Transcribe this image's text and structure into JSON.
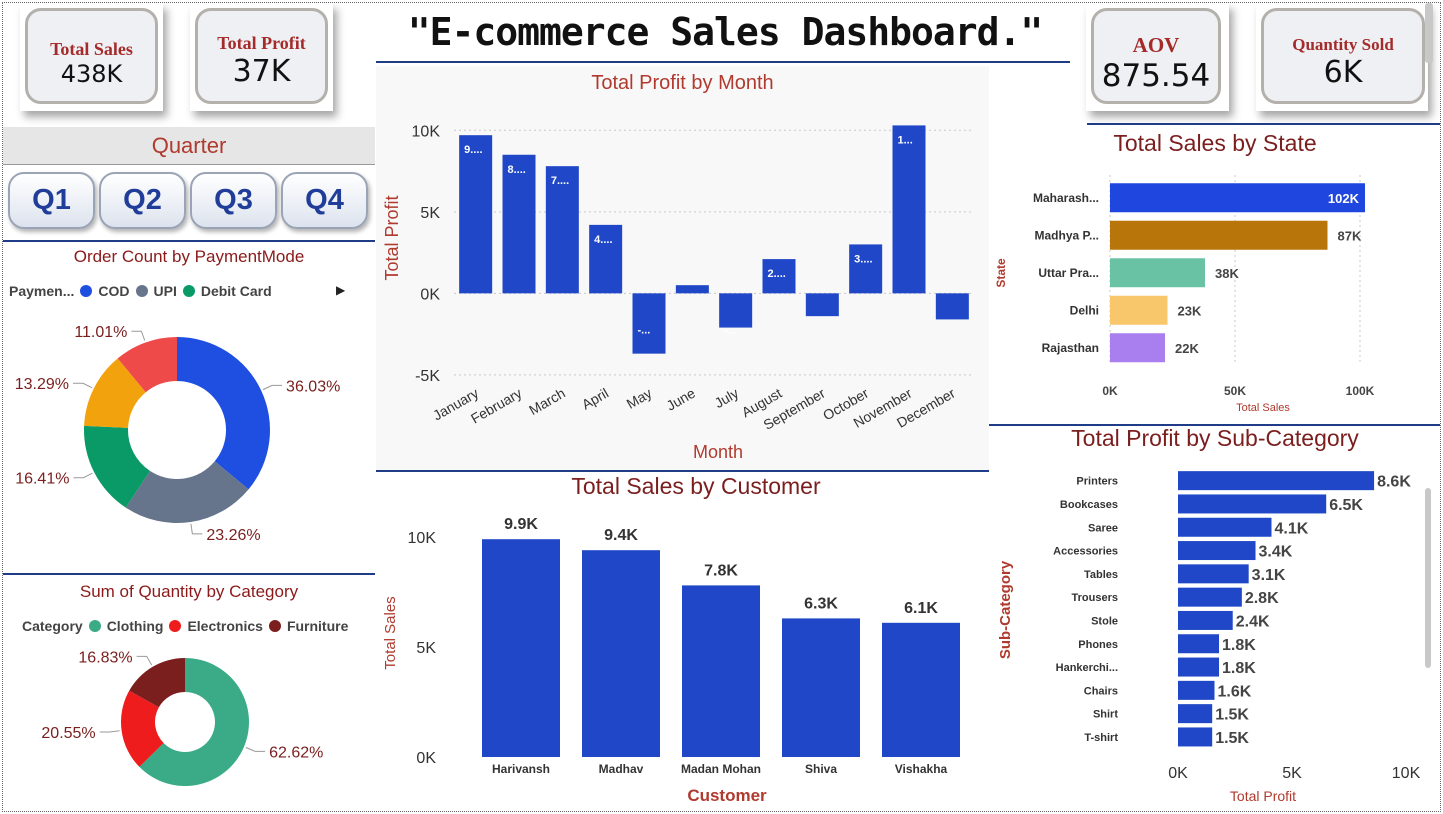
{
  "dashboard_title": "\"E-commerce Sales Dashboard.\"",
  "kpis": {
    "total_sales": {
      "label": "Total Sales",
      "value": "438K"
    },
    "total_profit": {
      "label": "Total Profit",
      "value": "37K"
    },
    "aov": {
      "label": "AOV",
      "value": "875.54"
    },
    "quantity_sold": {
      "label": "Quantity Sold",
      "value": "6K"
    }
  },
  "quarter_slicer": {
    "title": "Quarter",
    "buttons": [
      "Q1",
      "Q2",
      "Q3",
      "Q4"
    ]
  },
  "colors": {
    "bar_blue": "#1f47c7",
    "accent_red": "#8b1a1a",
    "divider": "#1f3c88"
  },
  "chart_data": [
    {
      "id": "profit_by_month",
      "type": "bar",
      "title": "Total Profit by Month",
      "xlabel": "Month",
      "ylabel": "Total Profit",
      "categories": [
        "January",
        "February",
        "March",
        "April",
        "May",
        "June",
        "July",
        "August",
        "September",
        "October",
        "November",
        "December"
      ],
      "values": [
        9700,
        8500,
        7800,
        4200,
        -3700,
        500,
        -2100,
        2100,
        -1400,
        3000,
        10300,
        -1600
      ],
      "data_labels": [
        "9....",
        "8....",
        "7....",
        "4....",
        "-...",
        "",
        "-...",
        "2....",
        "",
        "3....",
        "1...",
        ""
      ],
      "ylim": [
        -5500,
        11000
      ],
      "ticks": [
        {
          "v": 10000,
          "t": "10K"
        },
        {
          "v": 5000,
          "t": "5K"
        },
        {
          "v": 0,
          "t": "0K"
        },
        {
          "v": -5000,
          "t": "-5K"
        }
      ],
      "grid": true
    },
    {
      "id": "sales_by_customer",
      "type": "bar",
      "title": "Total Sales by Customer",
      "xlabel": "Customer",
      "ylabel": "Total Sales",
      "categories": [
        "Harivansh",
        "Madhav",
        "Madan Mohan",
        "Shiva",
        "Vishakha"
      ],
      "values": [
        9900,
        9400,
        7800,
        6300,
        6100
      ],
      "data_labels": [
        "9.9K",
        "9.4K",
        "7.8K",
        "6.3K",
        "6.1K"
      ],
      "ylim": [
        0,
        11000
      ],
      "ticks": [
        {
          "v": 10000,
          "t": "10K"
        },
        {
          "v": 5000,
          "t": "5K"
        },
        {
          "v": 0,
          "t": "0K"
        }
      ],
      "grid": false
    },
    {
      "id": "sales_by_state",
      "type": "bar",
      "orientation": "horizontal",
      "title": "Total Sales by State",
      "xlabel": "Total Sales",
      "ylabel": "State",
      "categories": [
        "Maharash...",
        "Madhya P...",
        "Uttar Pra...",
        "Delhi",
        "Rajasthan"
      ],
      "values": [
        102000,
        87000,
        38000,
        23000,
        22000
      ],
      "data_labels": [
        "102K",
        "87K",
        "38K",
        "23K",
        "22K"
      ],
      "colors": [
        "#1f47e0",
        "#b8760a",
        "#6ac2a4",
        "#f8c66b",
        "#a97ff0"
      ],
      "xlim": [
        0,
        110000
      ],
      "ticks": [
        {
          "v": 0,
          "t": "0K"
        },
        {
          "v": 50000,
          "t": "50K"
        },
        {
          "v": 100000,
          "t": "100K"
        }
      ],
      "grid": true
    },
    {
      "id": "profit_by_subcategory",
      "type": "bar",
      "orientation": "horizontal",
      "title": "Total Profit by Sub-Category",
      "xlabel": "Total Profit",
      "ylabel": "Sub-Category",
      "categories": [
        "Printers",
        "Bookcases",
        "Saree",
        "Accessories",
        "Tables",
        "Trousers",
        "Stole",
        "Phones",
        "Hankerchi...",
        "Chairs",
        "Shirt",
        "T-shirt"
      ],
      "values": [
        8600,
        6500,
        4100,
        3400,
        3100,
        2800,
        2400,
        1800,
        1800,
        1600,
        1500,
        1500
      ],
      "data_labels": [
        "8.6K",
        "6.5K",
        "4.1K",
        "3.4K",
        "3.1K",
        "2.8K",
        "2.4K",
        "1.8K",
        "1.8K",
        "1.6K",
        "1.5K",
        "1.5K"
      ],
      "xlim": [
        0,
        10000
      ],
      "ticks": [
        {
          "v": 0,
          "t": "0K"
        },
        {
          "v": 5000,
          "t": "5K"
        },
        {
          "v": 10000,
          "t": "10K"
        }
      ],
      "grid": false
    },
    {
      "id": "orders_by_paymentmode",
      "type": "pie",
      "donut": true,
      "title": "Order Count by PaymentMode",
      "legend_title": "Paymen...",
      "legend": [
        {
          "name": "COD",
          "color": "#1f4fe0"
        },
        {
          "name": "UPI",
          "color": "#66758c"
        },
        {
          "name": "Debit Card",
          "color": "#0a9a68"
        }
      ],
      "slices": [
        {
          "value": 36.03,
          "label": "36.03%",
          "color": "#1f4fe0"
        },
        {
          "value": 23.26,
          "label": "23.26%",
          "color": "#66758c"
        },
        {
          "value": 16.41,
          "label": "16.41%",
          "color": "#0a9a68"
        },
        {
          "value": 13.29,
          "label": "13.29%",
          "color": "#f2a20c"
        },
        {
          "value": 11.01,
          "label": "11.01%",
          "color": "#ef4a4a"
        }
      ]
    },
    {
      "id": "quantity_by_category",
      "type": "pie",
      "donut": true,
      "title": "Sum of Quantity by Category",
      "legend_title": "Category",
      "legend": [
        {
          "name": "Clothing",
          "color": "#3aab86"
        },
        {
          "name": "Electronics",
          "color": "#ee1c1c"
        },
        {
          "name": "Furniture",
          "color": "#7a1e1e"
        }
      ],
      "slices": [
        {
          "value": 62.62,
          "label": "62.62%",
          "color": "#3aab86"
        },
        {
          "value": 20.55,
          "label": "20.55%",
          "color": "#ee1c1c"
        },
        {
          "value": 16.83,
          "label": "16.83%",
          "color": "#7a1e1e"
        }
      ]
    }
  ]
}
